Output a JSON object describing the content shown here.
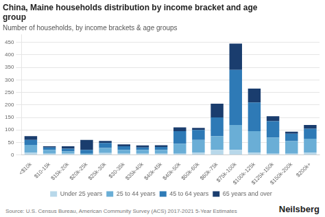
{
  "chart_data": {
    "type": "bar",
    "stacked": true,
    "title": "China, Maine households distribution by income bracket and age\ngroup",
    "subtitle": "Number of households, by income brackets & age groups",
    "annotations": [
      "Source: U.S. Census Bureau, American Community Survey (ACS) 2017-2021 5-Year Estimates",
      "Neilsberg"
    ],
    "categories": [
      "<$10k",
      "$10-15k",
      "$15k-20k",
      "$20k-25k",
      "$25k-30k",
      "$30-35k",
      "$35k-40k",
      "$40k-45k",
      "$40k-50k",
      "$50k-60k",
      "$60k-75k",
      "$75k-100k",
      "$100k-125k",
      "$125k-150k",
      "$150k-200k",
      "$200k+"
    ],
    "series": [
      {
        "name": "Under 25 years",
        "color": "#b8d8ea",
        "values": [
          10,
          5,
          5,
          0,
          8,
          5,
          5,
          5,
          5,
          10,
          20,
          20,
          10,
          5,
          5,
          10
        ]
      },
      {
        "name": "25 to 44 years",
        "color": "#6aaed6",
        "values": [
          30,
          15,
          10,
          5,
          20,
          15,
          15,
          15,
          40,
          50,
          55,
          100,
          85,
          65,
          50,
          55
        ]
      },
      {
        "name": "45 to 64 years",
        "color": "#2e7ab6",
        "values": [
          20,
          10,
          10,
          15,
          20,
          15,
          10,
          12,
          50,
          40,
          75,
          220,
          115,
          65,
          30,
          40
        ]
      },
      {
        "name": "65 years and over",
        "color": "#1a3d6e",
        "values": [
          15,
          5,
          10,
          40,
          8,
          7,
          8,
          7,
          15,
          8,
          55,
          105,
          55,
          20,
          8,
          15
        ]
      }
    ],
    "ylim": [
      0,
      480
    ],
    "yticks": [
      0,
      50,
      100,
      150,
      200,
      250,
      300,
      350,
      400,
      450
    ],
    "grid": true,
    "legend": "bottom"
  }
}
